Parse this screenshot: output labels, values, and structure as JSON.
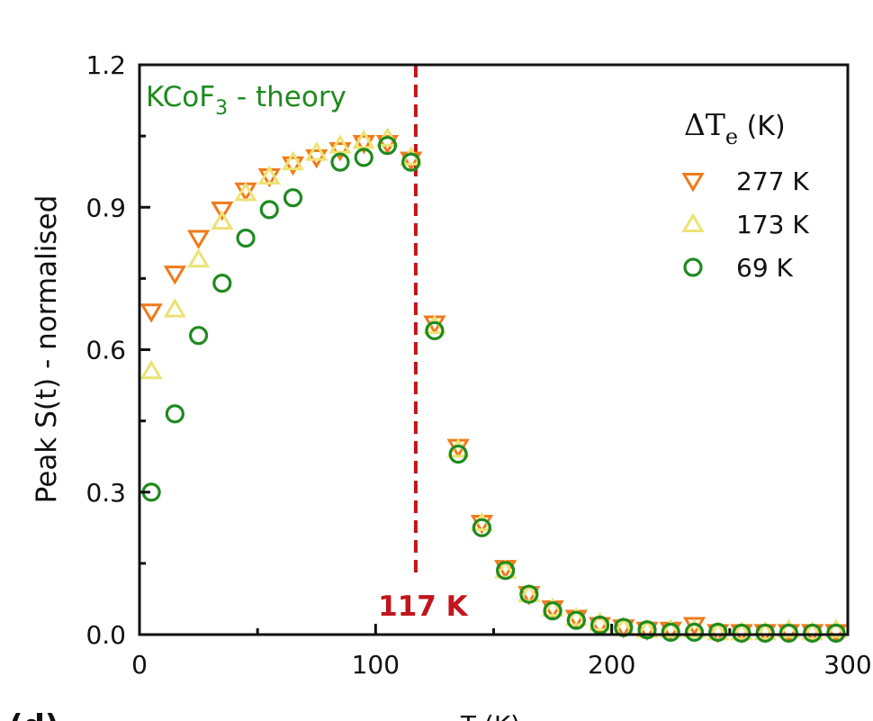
{
  "chart_data": {
    "type": "scatter",
    "ylabel": "Peak S(t) - normalised",
    "xlabel": "T",
    "xlabel_partial": "T  (K)",
    "panel_label_partial": "(d)",
    "xlim": [
      0,
      300
    ],
    "ylim": [
      0,
      1.2
    ],
    "xticks": [
      "0",
      "100",
      "200",
      "300"
    ],
    "yticks": [
      "0.0",
      "0.3",
      "0.6",
      "0.9",
      "1.2"
    ],
    "annotation": {
      "text_main": "KCoF",
      "text_sub": "3",
      "text_tail": " - theory",
      "color": "#1f8a1f"
    },
    "vline": {
      "x": 117,
      "label": "117 K",
      "color": "#c0161c"
    },
    "legend": {
      "title_main": "ΔT",
      "title_sub": "e",
      "title_tail": " (K)",
      "placement": "top-right"
    },
    "series": [
      {
        "name": "277 K",
        "marker": "triangle-down",
        "color": "#f07a1a",
        "x": [
          5,
          15,
          25,
          35,
          45,
          55,
          65,
          75,
          85,
          95,
          105,
          115,
          125,
          135,
          145,
          155,
          165,
          175,
          185,
          195,
          205,
          215,
          225,
          235,
          245,
          255,
          265,
          275,
          285,
          295
        ],
        "y": [
          0.68,
          0.76,
          0.835,
          0.895,
          0.935,
          0.965,
          0.99,
          1.005,
          1.02,
          1.035,
          1.035,
          1.0,
          0.655,
          0.395,
          0.235,
          0.14,
          0.085,
          0.055,
          0.035,
          0.02,
          0.015,
          0.01,
          0.01,
          0.02,
          0.005,
          0.005,
          0.005,
          0.005,
          0.005,
          0.005
        ]
      },
      {
        "name": "173 K",
        "marker": "triangle-up",
        "color": "#ece274",
        "x": [
          5,
          15,
          25,
          35,
          45,
          55,
          65,
          75,
          85,
          95,
          105,
          115,
          125,
          135,
          145,
          155,
          165,
          175,
          185,
          195,
          205,
          215,
          225,
          235,
          245,
          255,
          265,
          275,
          285,
          295
        ],
        "y": [
          0.555,
          0.685,
          0.79,
          0.87,
          0.93,
          0.965,
          0.995,
          1.015,
          1.03,
          1.04,
          1.045,
          1.005,
          0.65,
          0.39,
          0.235,
          0.135,
          0.085,
          0.055,
          0.035,
          0.025,
          0.015,
          0.01,
          0.01,
          0.01,
          0.005,
          0.005,
          0.005,
          0.01,
          0.005,
          0.01
        ]
      },
      {
        "name": "69 K",
        "marker": "circle",
        "color": "#1f8a1f",
        "x": [
          5,
          15,
          25,
          35,
          45,
          55,
          65,
          85,
          95,
          105,
          115,
          125,
          135,
          145,
          155,
          165,
          175,
          185,
          195,
          205,
          215,
          225,
          235,
          245,
          255,
          265,
          275,
          285,
          295
        ],
        "y": [
          0.3,
          0.465,
          0.63,
          0.74,
          0.835,
          0.895,
          0.92,
          0.995,
          1.005,
          1.03,
          0.995,
          0.64,
          0.38,
          0.225,
          0.135,
          0.085,
          0.05,
          0.03,
          0.02,
          0.015,
          0.01,
          0.005,
          0.005,
          0.005,
          0.003,
          0.003,
          0.003,
          0.003,
          0.003
        ]
      }
    ]
  }
}
